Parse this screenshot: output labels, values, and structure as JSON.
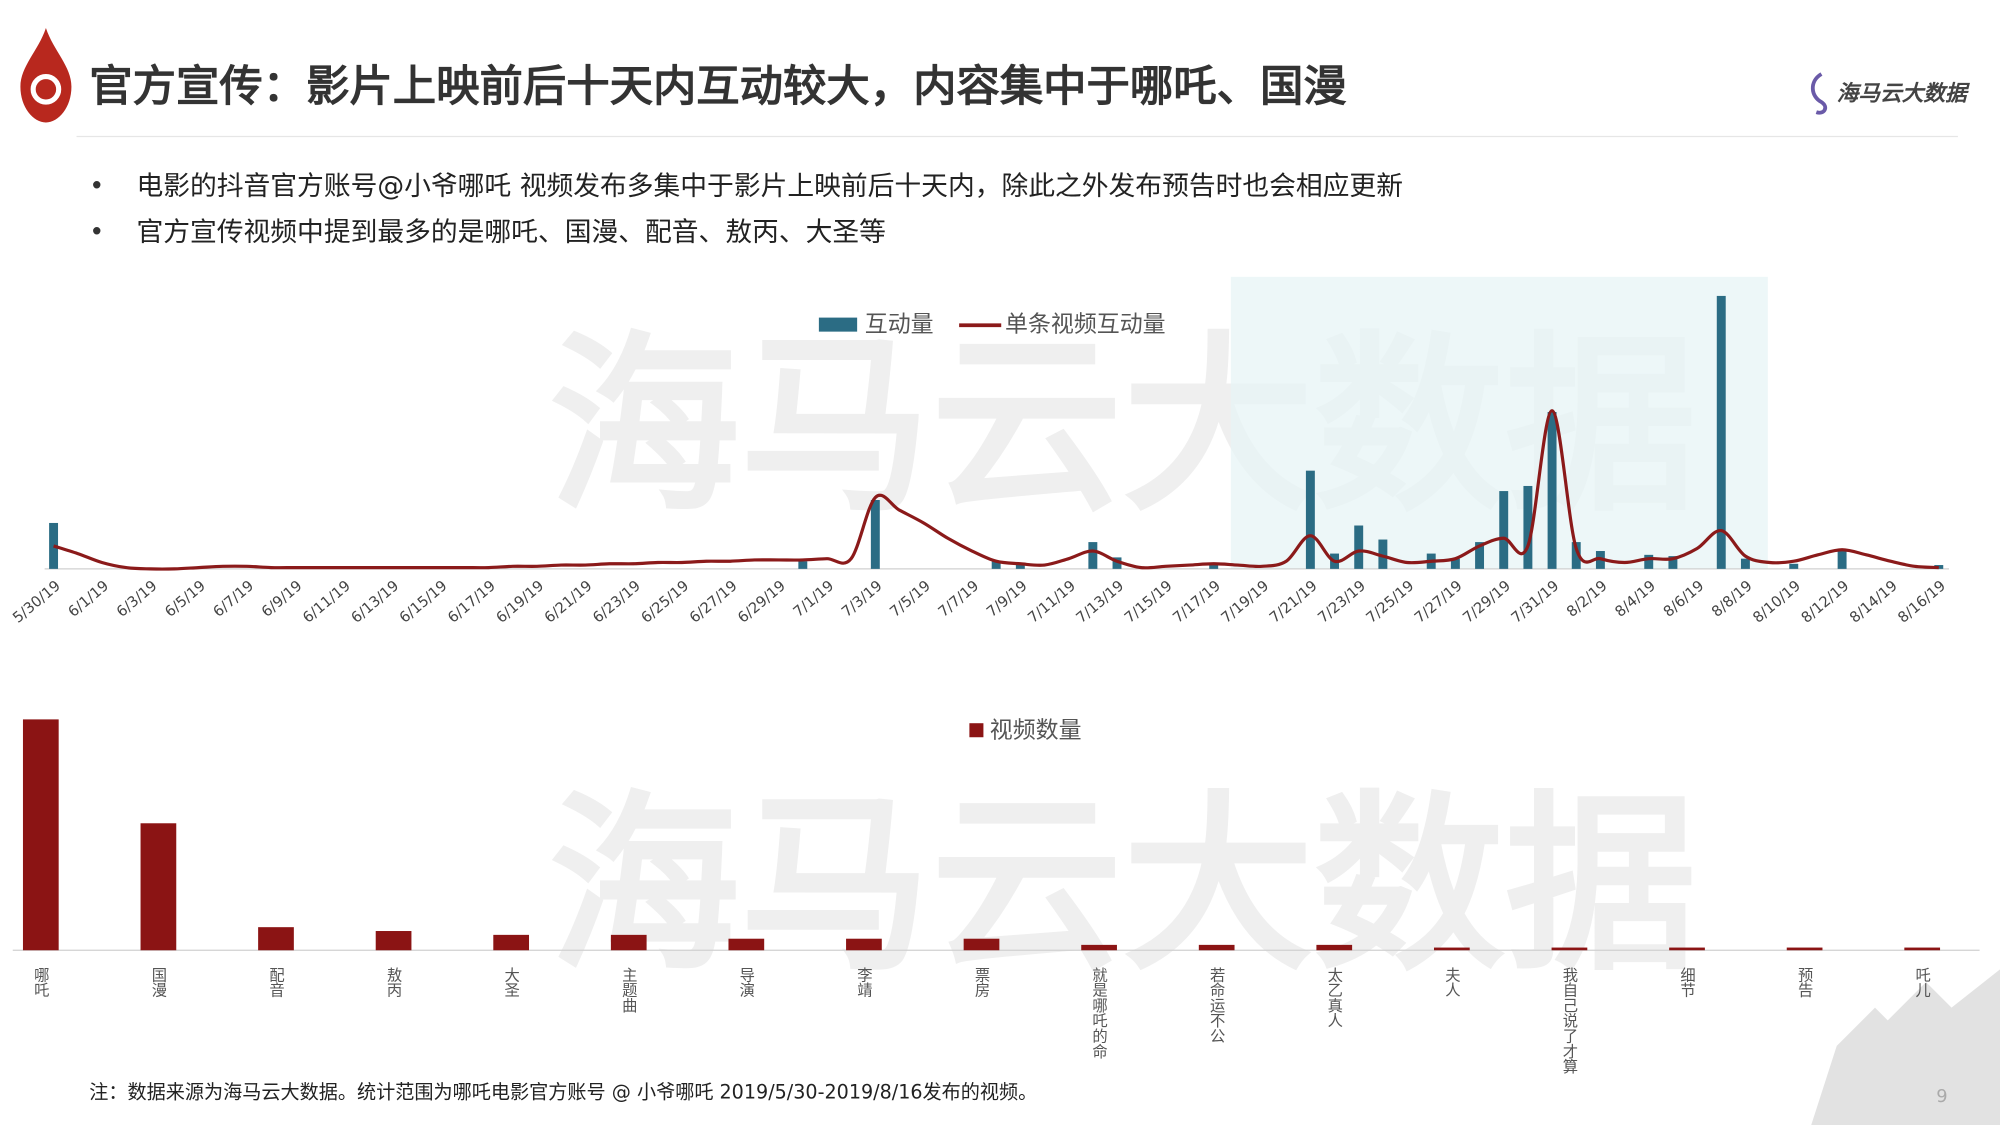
{
  "header": {
    "title": "官方宣传：影片上映前后十天内互动较大，内容集中于哪吒、国漫",
    "logo": "海马云大数据"
  },
  "bullets": [
    "电影的抖音官方账号@小爷哪吒 视频发布多集中于影片上映前后十天内，除此之外发布预告时也会相应更新",
    "官方宣传视频中提到最多的是哪吒、国漫、配音、敖丙、大圣等"
  ],
  "watermark": "海马云大数据",
  "chart_data": [
    {
      "type": "combo",
      "categories": [
        "5/30/19",
        null,
        "6/1/19",
        null,
        "6/3/19",
        null,
        "6/5/19",
        null,
        "6/7/19",
        null,
        "6/9/19",
        null,
        "6/11/19",
        null,
        "6/13/19",
        null,
        "6/15/19",
        null,
        "6/17/19",
        null,
        "6/19/19",
        null,
        "6/21/19",
        null,
        "6/23/19",
        null,
        "6/25/19",
        null,
        "6/27/19",
        null,
        "6/29/19",
        null,
        "7/1/19",
        null,
        "7/3/19",
        null,
        "7/5/19",
        null,
        "7/7/19",
        null,
        "7/9/19",
        null,
        "7/11/19",
        null,
        "7/13/19",
        null,
        "7/15/19",
        null,
        "7/17/19",
        null,
        "7/19/19",
        null,
        "7/21/19",
        null,
        "7/23/19",
        null,
        "7/25/19",
        null,
        "7/27/19",
        null,
        "7/29/19",
        null,
        "7/31/19",
        null,
        "8/2/19",
        null,
        "8/4/19",
        null,
        "8/6/19",
        null,
        "8/8/19",
        null,
        "8/10/19",
        null,
        "8/12/19",
        null,
        "8/14/19",
        null,
        "8/16/19"
      ],
      "series": [
        {
          "name": "互动量",
          "type": "bar",
          "color": "#2b6c84",
          "values": [
            36,
            0,
            0,
            0,
            0,
            0,
            0,
            0,
            0,
            0,
            0,
            0,
            0,
            0,
            0,
            0,
            0,
            0,
            0,
            0,
            0,
            0,
            0,
            0,
            0,
            0,
            0,
            0,
            0,
            0,
            0,
            6,
            0,
            0,
            54,
            0,
            0,
            0,
            0,
            6,
            5,
            0,
            0,
            21,
            9,
            0,
            0,
            0,
            5,
            0,
            0,
            0,
            77,
            12,
            34,
            23,
            0,
            12,
            8,
            21,
            61,
            65,
            123,
            21,
            14,
            0,
            11,
            10,
            0,
            214,
            8,
            0,
            4,
            0,
            14,
            0,
            0,
            0,
            3
          ]
        },
        {
          "name": "单条视频互动量",
          "type": "line",
          "color": "#8b1a1a",
          "values": [
            18,
            12,
            5,
            1,
            0,
            0,
            1,
            2,
            2,
            1,
            1,
            1,
            1,
            1,
            1,
            1,
            1,
            1,
            1,
            2,
            2,
            3,
            3,
            4,
            4,
            5,
            5,
            6,
            6,
            7,
            7,
            7,
            8,
            8,
            56,
            46,
            36,
            24,
            14,
            6,
            4,
            3,
            8,
            14,
            6,
            1,
            2,
            3,
            4,
            3,
            2,
            6,
            26,
            6,
            14,
            10,
            5,
            6,
            8,
            18,
            24,
            18,
            124,
            16,
            8,
            5,
            8,
            8,
            16,
            30,
            10,
            5,
            6,
            11,
            15,
            11,
            6,
            2,
            1
          ]
        }
      ]
    },
    {
      "type": "bar",
      "categories": [
        "哪吒",
        "国漫",
        "配音",
        "敖丙",
        "大圣",
        "主题曲",
        "导演",
        "李靖",
        "票房",
        "就是哪吒的命",
        "若命运不公",
        "太乙真人",
        "夫人",
        "我自己说了才算",
        "细节",
        "预告",
        "吒儿"
      ],
      "series": [
        {
          "name": "视频数量",
          "color": "#8b1414",
          "values": [
            60,
            33,
            6,
            5,
            4,
            4,
            3,
            3,
            3,
            1.4,
            1.4,
            1.4,
            0.7,
            0.7,
            0.7,
            0.7,
            0.7
          ]
        }
      ]
    }
  ],
  "note": "注：数据来源为海马云大数据。统计范围为哪吒电影官方账号 @ 小爷哪吒 2019/5/30-2019/8/16发布的视频。",
  "page_number": "9"
}
